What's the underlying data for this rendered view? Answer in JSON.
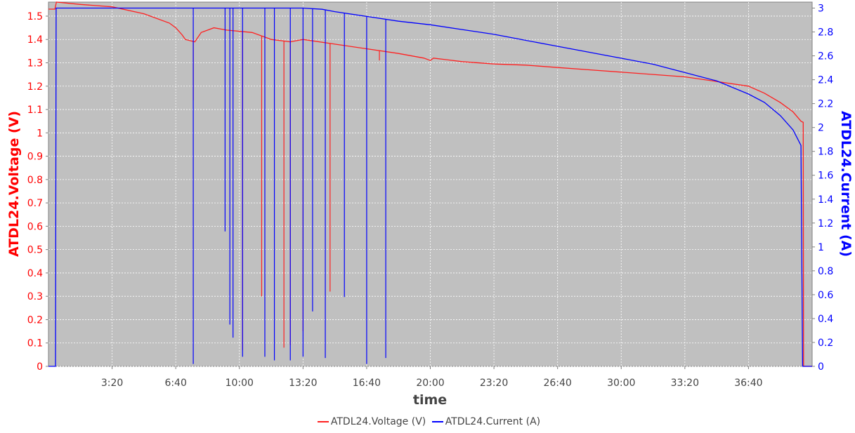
{
  "chart_data": {
    "type": "line",
    "xlabel": "time",
    "x_tick_labels": [
      "3:20",
      "6:40",
      "10:00",
      "13:20",
      "16:40",
      "20:00",
      "23:20",
      "26:40",
      "30:00",
      "33:20",
      "36:40"
    ],
    "x_tick_seconds": [
      200,
      400,
      600,
      800,
      1000,
      1200,
      1400,
      1600,
      1800,
      2000,
      2200
    ],
    "xlim_seconds": [
      0,
      2400
    ],
    "axes": {
      "left": {
        "label": "ATDL24.Voltage (V)",
        "ylim": [
          0,
          1.56
        ],
        "tick_labels": [
          "0",
          "0.1",
          "0.2",
          "0.3",
          "0.4",
          "0.5",
          "0.6",
          "0.7",
          "0.8",
          "0.9",
          "1",
          "1.1",
          "1.2",
          "1.3",
          "1.4",
          "1.5"
        ],
        "color": "#ff0000"
      },
      "right": {
        "label": "ATDL24.Current (A)",
        "ylim": [
          0,
          3.05
        ],
        "tick_labels": [
          "0",
          "0.2",
          "0.4",
          "0.6",
          "0.8",
          "1",
          "1.2",
          "1.4",
          "1.6",
          "1.8",
          "2",
          "2.2",
          "2.4",
          "2.6",
          "2.8",
          "3"
        ],
        "color": "#0000ff"
      }
    },
    "grid": true,
    "legend_position": "bottom",
    "series": [
      {
        "name": "ATDL24.Voltage (V)",
        "axis": "left",
        "color": "#ff2020",
        "points": [
          [
            0,
            1.53
          ],
          [
            20,
            1.53
          ],
          [
            25,
            1.56
          ],
          [
            100,
            1.55
          ],
          [
            200,
            1.54
          ],
          [
            300,
            1.51
          ],
          [
            380,
            1.47
          ],
          [
            400,
            1.45
          ],
          [
            420,
            1.42
          ],
          [
            430,
            1.4
          ],
          [
            460,
            1.39
          ],
          [
            480,
            1.43
          ],
          [
            520,
            1.45
          ],
          [
            560,
            1.44
          ],
          [
            640,
            1.43
          ],
          [
            700,
            1.4
          ],
          [
            760,
            1.39
          ],
          [
            800,
            1.4
          ],
          [
            900,
            1.38
          ],
          [
            1000,
            1.36
          ],
          [
            1100,
            1.34
          ],
          [
            1180,
            1.32
          ],
          [
            1200,
            1.31
          ],
          [
            1210,
            1.32
          ],
          [
            1300,
            1.305
          ],
          [
            1400,
            1.295
          ],
          [
            1500,
            1.29
          ],
          [
            1600,
            1.28
          ],
          [
            1700,
            1.27
          ],
          [
            1800,
            1.26
          ],
          [
            1900,
            1.25
          ],
          [
            2000,
            1.24
          ],
          [
            2100,
            1.22
          ],
          [
            2200,
            1.2
          ],
          [
            2250,
            1.17
          ],
          [
            2300,
            1.13
          ],
          [
            2340,
            1.09
          ],
          [
            2365,
            1.05
          ],
          [
            2372,
            1.045
          ],
          [
            2373,
            0.0
          ],
          [
            2400,
            0.0
          ]
        ],
        "dips": [
          [
            455,
            1.14
          ],
          [
            610,
            0.07
          ],
          [
            670,
            0.3
          ],
          [
            740,
            0.08
          ],
          [
            760,
            0.09
          ],
          [
            800,
            0.15
          ],
          [
            885,
            0.32
          ],
          [
            1040,
            1.31
          ]
        ]
      },
      {
        "name": "ATDL24.Current (A)",
        "axis": "right",
        "color": "#0000ff",
        "points": [
          [
            0,
            0.0
          ],
          [
            22,
            0.0
          ],
          [
            24,
            3.0
          ],
          [
            100,
            3.0
          ],
          [
            200,
            3.0
          ],
          [
            300,
            3.0
          ],
          [
            400,
            3.0
          ],
          [
            500,
            3.0
          ],
          [
            600,
            3.0
          ],
          [
            700,
            3.0
          ],
          [
            800,
            3.0
          ],
          [
            860,
            2.99
          ],
          [
            900,
            2.97
          ],
          [
            1000,
            2.93
          ],
          [
            1100,
            2.89
          ],
          [
            1200,
            2.86
          ],
          [
            1300,
            2.82
          ],
          [
            1400,
            2.78
          ],
          [
            1500,
            2.73
          ],
          [
            1600,
            2.68
          ],
          [
            1700,
            2.63
          ],
          [
            1800,
            2.58
          ],
          [
            1900,
            2.53
          ],
          [
            2000,
            2.46
          ],
          [
            2100,
            2.39
          ],
          [
            2200,
            2.28
          ],
          [
            2250,
            2.21
          ],
          [
            2300,
            2.1
          ],
          [
            2340,
            1.98
          ],
          [
            2365,
            1.85
          ],
          [
            2370,
            0.0
          ],
          [
            2400,
            0.0
          ]
        ],
        "dips": [
          [
            455,
            0.02
          ],
          [
            555,
            1.13
          ],
          [
            570,
            0.35
          ],
          [
            580,
            0.24
          ],
          [
            610,
            0.08
          ],
          [
            680,
            0.08
          ],
          [
            710,
            0.05
          ],
          [
            760,
            0.05
          ],
          [
            800,
            0.08
          ],
          [
            830,
            0.46
          ],
          [
            870,
            0.07
          ],
          [
            930,
            0.58
          ],
          [
            1000,
            0.02
          ],
          [
            1060,
            0.07
          ]
        ]
      }
    ]
  }
}
